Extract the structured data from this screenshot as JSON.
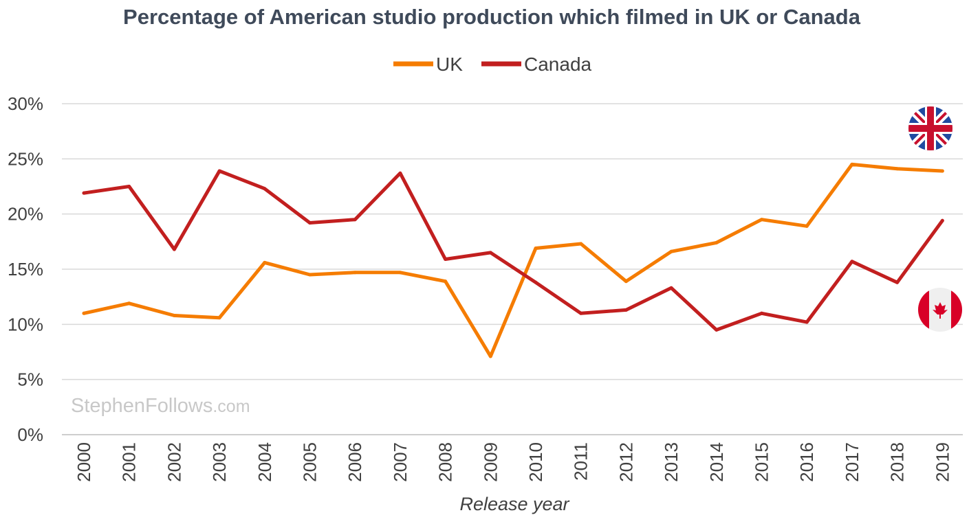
{
  "chart_data": {
    "type": "line",
    "title": "Percentage of American studio production which filmed in UK or Canada",
    "xlabel": "Release year",
    "ylabel": "",
    "x": [
      "2000",
      "2001",
      "2002",
      "2003",
      "2004",
      "2005",
      "2006",
      "2007",
      "2008",
      "2009",
      "2010",
      "2011",
      "2012",
      "2013",
      "2014",
      "2015",
      "2016",
      "2017",
      "2018",
      "2019"
    ],
    "yticks": [
      "0%",
      "5%",
      "10%",
      "15%",
      "20%",
      "25%",
      "30%"
    ],
    "ylim": [
      0,
      30
    ],
    "grid": true,
    "legend_position": "top-center",
    "series": [
      {
        "name": "UK",
        "color": "#f57c00",
        "values": [
          11.0,
          11.9,
          10.8,
          10.6,
          15.6,
          14.5,
          14.7,
          14.7,
          13.9,
          7.1,
          16.9,
          17.3,
          13.9,
          16.6,
          17.4,
          19.5,
          18.9,
          24.5,
          24.1,
          23.9
        ]
      },
      {
        "name": "Canada",
        "color": "#c21f1f",
        "values": [
          21.9,
          22.5,
          16.8,
          23.9,
          22.3,
          19.2,
          19.5,
          23.7,
          15.9,
          16.5,
          13.8,
          11.0,
          11.3,
          13.3,
          9.5,
          11.0,
          10.2,
          15.7,
          13.8,
          19.4
        ]
      }
    ]
  },
  "watermark": {
    "main": "StephenFollows",
    "suffix": ".com"
  },
  "flags": {
    "uk": "uk-flag-icon",
    "canada": "canada-flag-icon"
  }
}
